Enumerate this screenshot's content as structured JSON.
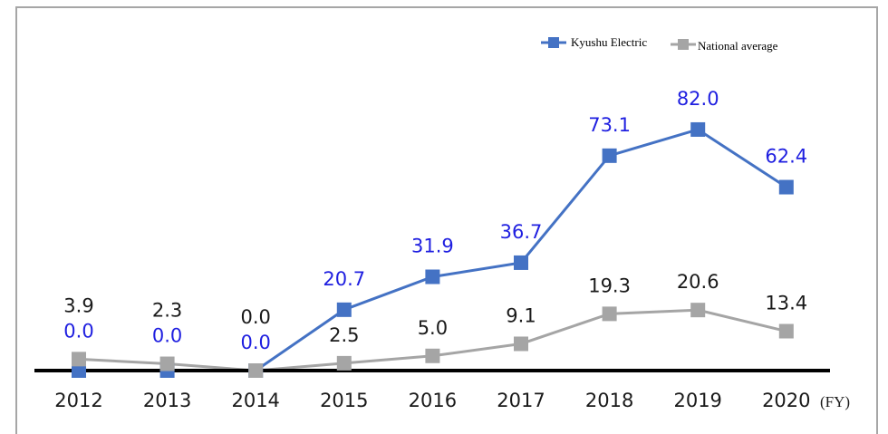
{
  "chart_data": {
    "type": "line",
    "categories": [
      "2012",
      "2013",
      "2014",
      "2015",
      "2016",
      "2017",
      "2018",
      "2019",
      "2020"
    ],
    "x_unit": "(FY)",
    "ylim": [
      0,
      90
    ],
    "legend": "top-right",
    "series": [
      {
        "name": "Kyushu Electric",
        "color": "#4472c4",
        "values": [
          0.0,
          0.0,
          0.0,
          20.7,
          31.9,
          36.7,
          73.1,
          82.0,
          62.4
        ],
        "value_labels": [
          "0.0",
          "0.0",
          "0.0",
          "20.7",
          "31.9",
          "36.7",
          "73.1",
          "82.0",
          "62.4"
        ],
        "label_color": "#1f1fe0"
      },
      {
        "name": "National average",
        "color": "#a5a5a5",
        "values": [
          3.9,
          2.3,
          0.0,
          2.5,
          5.0,
          9.1,
          19.3,
          20.6,
          13.4
        ],
        "value_labels": [
          "3.9",
          "2.3",
          "0.0",
          "2.5",
          "5.0",
          "9.1",
          "19.3",
          "20.6",
          "13.4"
        ],
        "label_color": "#1a1a1a"
      }
    ]
  }
}
